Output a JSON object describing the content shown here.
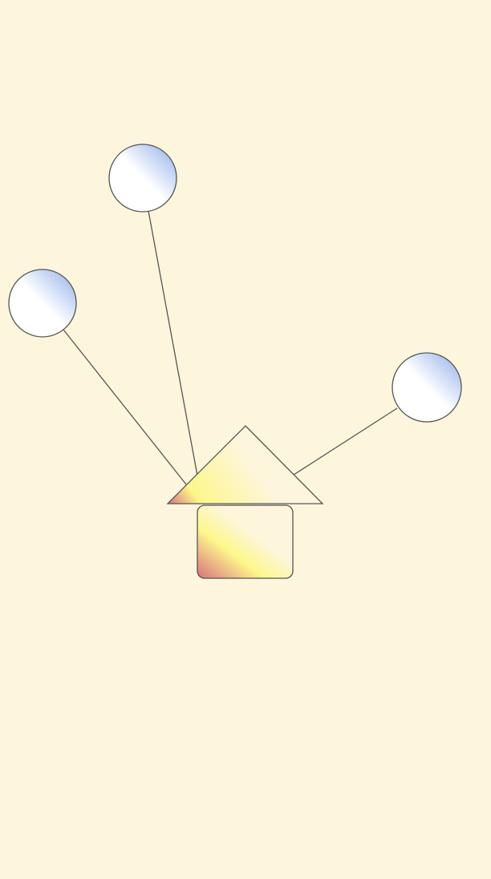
{
  "scene": {
    "background": "#fdf6dc",
    "balloon_colors": {
      "light": "#ffffff",
      "dark": "#8faee8"
    },
    "house_colors": {
      "light": "#fdf6dc",
      "mid": "#fdf78a",
      "dark": "#d9707e"
    },
    "outline_color": "#555555",
    "balloon_count": 3
  }
}
